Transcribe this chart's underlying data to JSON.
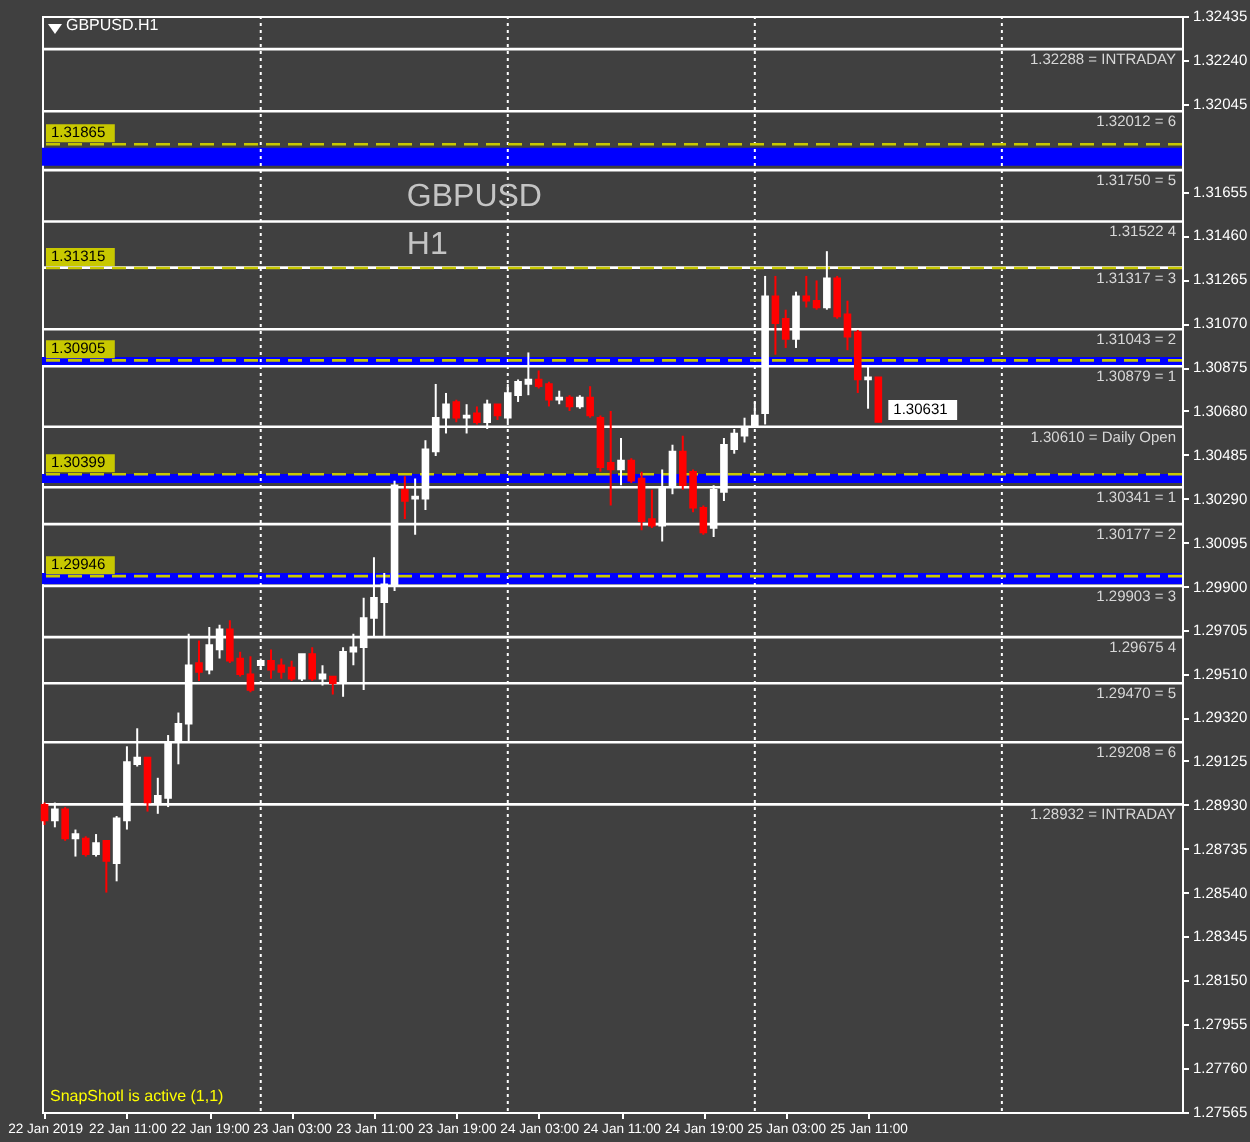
{
  "chart_data": {
    "type": "candlestick",
    "title": "GBPUSD.H1",
    "annotations": [
      "GBPUSD",
      "H1",
      "SnapShotl is active (1,1)",
      {
        "text": "1.30631",
        "x": "2019-01-25T12:00",
        "y": 1.30631
      }
    ],
    "x": [
      "2019-01-22T03:00",
      "2019-01-22T04:00",
      "2019-01-22T05:00",
      "2019-01-22T06:00",
      "2019-01-22T07:00",
      "2019-01-22T08:00",
      "2019-01-22T09:00",
      "2019-01-22T10:00",
      "2019-01-22T11:00",
      "2019-01-22T12:00",
      "2019-01-22T13:00",
      "2019-01-22T14:00",
      "2019-01-22T15:00",
      "2019-01-22T16:00",
      "2019-01-22T17:00",
      "2019-01-22T18:00",
      "2019-01-22T19:00",
      "2019-01-22T20:00",
      "2019-01-22T21:00",
      "2019-01-22T22:00",
      "2019-01-22T23:00",
      "2019-01-23T00:00",
      "2019-01-23T01:00",
      "2019-01-23T02:00",
      "2019-01-23T03:00",
      "2019-01-23T04:00",
      "2019-01-23T05:00",
      "2019-01-23T06:00",
      "2019-01-23T07:00",
      "2019-01-23T08:00",
      "2019-01-23T09:00",
      "2019-01-23T10:00",
      "2019-01-23T11:00",
      "2019-01-23T12:00",
      "2019-01-23T13:00",
      "2019-01-23T14:00",
      "2019-01-23T15:00",
      "2019-01-23T16:00",
      "2019-01-23T17:00",
      "2019-01-23T18:00",
      "2019-01-23T19:00",
      "2019-01-23T20:00",
      "2019-01-23T21:00",
      "2019-01-23T22:00",
      "2019-01-23T23:00",
      "2019-01-24T00:00",
      "2019-01-24T01:00",
      "2019-01-24T02:00",
      "2019-01-24T03:00",
      "2019-01-24T04:00",
      "2019-01-24T05:00",
      "2019-01-24T06:00",
      "2019-01-24T07:00",
      "2019-01-24T08:00",
      "2019-01-24T09:00",
      "2019-01-24T10:00",
      "2019-01-24T11:00",
      "2019-01-24T12:00",
      "2019-01-24T13:00",
      "2019-01-24T14:00",
      "2019-01-24T15:00",
      "2019-01-24T16:00",
      "2019-01-24T17:00",
      "2019-01-24T18:00",
      "2019-01-24T19:00",
      "2019-01-24T20:00",
      "2019-01-24T21:00",
      "2019-01-24T22:00",
      "2019-01-24T23:00",
      "2019-01-25T00:00",
      "2019-01-25T01:00",
      "2019-01-25T02:00",
      "2019-01-25T03:00",
      "2019-01-25T04:00",
      "2019-01-25T05:00",
      "2019-01-25T06:00",
      "2019-01-25T07:00",
      "2019-01-25T08:00",
      "2019-01-25T09:00",
      "2019-01-25T10:00",
      "2019-01-25T11:00",
      "2019-01-25T12:00"
    ],
    "ohlc": [
      [
        1.2893,
        1.2894,
        1.2884,
        1.2886
      ],
      [
        1.2886,
        1.2894,
        1.2883,
        1.2891
      ],
      [
        1.2891,
        1.2892,
        1.2877,
        1.2878
      ],
      [
        1.2878,
        1.2882,
        1.287,
        1.288
      ],
      [
        1.2878,
        1.2879,
        1.287,
        1.2871
      ],
      [
        1.2871,
        1.288,
        1.287,
        1.2876
      ],
      [
        1.2877,
        1.2877,
        1.2854,
        1.2868
      ],
      [
        1.2867,
        1.2888,
        1.2859,
        1.2887
      ],
      [
        1.2886,
        1.2919,
        1.2882,
        1.2912
      ],
      [
        1.2911,
        1.2927,
        1.291,
        1.2914
      ],
      [
        1.2914,
        1.2914,
        1.289,
        1.2894
      ],
      [
        1.2894,
        1.2905,
        1.2889,
        1.2897
      ],
      [
        1.2896,
        1.2924,
        1.2892,
        1.2921
      ],
      [
        1.2921,
        1.2934,
        1.2911,
        1.2929
      ],
      [
        1.2929,
        1.2969,
        1.2921,
        1.2955
      ],
      [
        1.2956,
        1.2966,
        1.2948,
        1.2952
      ],
      [
        1.2953,
        1.2972,
        1.2951,
        1.2964
      ],
      [
        1.2962,
        1.2973,
        1.2958,
        1.2971
      ],
      [
        1.2971,
        1.2975,
        1.2956,
        1.2957
      ],
      [
        1.2958,
        1.2961,
        1.295,
        1.2951
      ],
      [
        1.2951,
        1.2959,
        1.2943,
        1.2944
      ],
      [
        1.2955,
        1.2958,
        1.2953,
        1.2957
      ],
      [
        1.2957,
        1.2962,
        1.2949,
        1.2953
      ],
      [
        1.2955,
        1.2958,
        1.2949,
        1.2952
      ],
      [
        1.2954,
        1.2957,
        1.2948,
        1.2949
      ],
      [
        1.2949,
        1.296,
        1.2948,
        1.296
      ],
      [
        1.296,
        1.2963,
        1.2948,
        1.2949
      ],
      [
        1.2949,
        1.2955,
        1.2946,
        1.2951
      ],
      [
        1.295,
        1.295,
        1.2942,
        1.2947
      ],
      [
        1.2947,
        1.2963,
        1.2941,
        1.2961
      ],
      [
        1.2961,
        1.2969,
        1.2955,
        1.2963
      ],
      [
        1.2963,
        1.2985,
        1.2944,
        1.2976
      ],
      [
        1.2976,
        1.3003,
        1.2968,
        1.2985
      ],
      [
        1.2983,
        1.2996,
        1.2968,
        1.2991
      ],
      [
        1.2991,
        1.3037,
        1.2988,
        1.3035
      ],
      [
        1.3033,
        1.3039,
        1.302,
        1.3028
      ],
      [
        1.3029,
        1.3038,
        1.3013,
        1.303
      ],
      [
        1.3029,
        1.3055,
        1.3024,
        1.3051
      ],
      [
        1.305,
        1.308,
        1.3048,
        1.3065
      ],
      [
        1.3065,
        1.3076,
        1.3058,
        1.3071
      ],
      [
        1.3072,
        1.3073,
        1.3063,
        1.3065
      ],
      [
        1.3065,
        1.3071,
        1.3058,
        1.3066
      ],
      [
        1.3067,
        1.307,
        1.3062,
        1.3063
      ],
      [
        1.3063,
        1.3073,
        1.306,
        1.3071
      ],
      [
        1.3071,
        1.3071,
        1.3064,
        1.3066
      ],
      [
        1.3065,
        1.308,
        1.3063,
        1.3076
      ],
      [
        1.3075,
        1.3082,
        1.3072,
        1.3081
      ],
      [
        1.308,
        1.3094,
        1.3075,
        1.3082
      ],
      [
        1.3082,
        1.3086,
        1.3078,
        1.3079
      ],
      [
        1.308,
        1.3081,
        1.307,
        1.3073
      ],
      [
        1.3073,
        1.3077,
        1.3071,
        1.3074
      ],
      [
        1.3074,
        1.3075,
        1.3068,
        1.307
      ],
      [
        1.307,
        1.3075,
        1.3069,
        1.3074
      ],
      [
        1.3074,
        1.3079,
        1.3065,
        1.3066
      ],
      [
        1.3065,
        1.3066,
        1.3041,
        1.3043
      ],
      [
        1.3045,
        1.3068,
        1.3026,
        1.3042
      ],
      [
        1.3042,
        1.3056,
        1.3035,
        1.3046
      ],
      [
        1.3046,
        1.3047,
        1.3036,
        1.3037
      ],
      [
        1.3038,
        1.3041,
        1.3015,
        1.3019
      ],
      [
        1.302,
        1.3033,
        1.3016,
        1.3017
      ],
      [
        1.3017,
        1.3042,
        1.301,
        1.3034
      ],
      [
        1.3035,
        1.3053,
        1.3031,
        1.305
      ],
      [
        1.305,
        1.3057,
        1.3033,
        1.3035
      ],
      [
        1.3041,
        1.3042,
        1.3023,
        1.3025
      ],
      [
        1.3025,
        1.3026,
        1.3013,
        1.3014
      ],
      [
        1.3016,
        1.3035,
        1.3012,
        1.3033
      ],
      [
        1.3032,
        1.3056,
        1.3028,
        1.3053
      ],
      [
        1.3051,
        1.306,
        1.3049,
        1.3058
      ],
      [
        1.3057,
        1.3065,
        1.3054,
        1.3061
      ],
      [
        1.3061,
        1.3072,
        1.3061,
        1.3066
      ],
      [
        1.3067,
        1.3128,
        1.3062,
        1.3119
      ],
      [
        1.3119,
        1.3128,
        1.3093,
        1.3107
      ],
      [
        1.3109,
        1.3113,
        1.3096,
        1.31
      ],
      [
        1.31,
        1.3121,
        1.3096,
        1.3119
      ],
      [
        1.3119,
        1.3128,
        1.3114,
        1.3117
      ],
      [
        1.3117,
        1.3126,
        1.3113,
        1.3114
      ],
      [
        1.3114,
        1.3139,
        1.3113,
        1.3127
      ],
      [
        1.3127,
        1.3128,
        1.3109,
        1.311
      ],
      [
        1.3111,
        1.3117,
        1.3095,
        1.3101
      ],
      [
        1.3103,
        1.3104,
        1.3076,
        1.3082
      ],
      [
        1.3082,
        1.3088,
        1.3069,
        1.3083
      ],
      [
        1.3083,
        1.3083,
        1.3063,
        1.30631
      ]
    ],
    "colors": [
      "#ff0000",
      "#ffffff",
      "#ff0000",
      "#ffffff",
      "#ff0000",
      "#ffffff",
      "#ff0000",
      "#ffffff",
      "#ffffff",
      "#ffffff",
      "#ff0000",
      "#ffffff",
      "#ffffff",
      "#ffffff",
      "#ffffff",
      "#ff0000",
      "#ffffff",
      "#ffffff",
      "#ff0000",
      "#ff0000",
      "#ff0000",
      "#ffffff",
      "#ff0000",
      "#ff0000",
      "#ff0000",
      "#ffffff",
      "#ff0000",
      "#ffffff",
      "#ff0000",
      "#ffffff",
      "#ffffff",
      "#ffffff",
      "#ffffff",
      "#ffffff",
      "#ffffff",
      "#ff0000",
      "#ffffff",
      "#ffffff",
      "#ffffff",
      "#ffffff",
      "#ff0000",
      "#ffffff",
      "#ff0000",
      "#ffffff",
      "#ff0000",
      "#ffffff",
      "#ffffff",
      "#ffffff",
      "#ff0000",
      "#ff0000",
      "#ffffff",
      "#ff0000",
      "#ffffff",
      "#ff0000",
      "#ff0000",
      "#ff0000",
      "#ffffff",
      "#ff0000",
      "#ff0000",
      "#ff0000",
      "#ffffff",
      "#ffffff",
      "#ff0000",
      "#ff0000",
      "#ff0000",
      "#ffffff",
      "#ffffff",
      "#ffffff",
      "#ffffff",
      "#ffffff",
      "#ffffff",
      "#ff0000",
      "#ff0000",
      "#ffffff",
      "#ff0000",
      "#ff0000",
      "#ffffff",
      "#ff0000",
      "#ff0000",
      "#ff0000",
      "#ffffff",
      "#ff0000"
    ],
    "xlim": [
      "2019-01-22T02:45",
      "2019-01-26T17:30"
    ],
    "xticks": [
      {
        "value": "2019-01-22T03:00",
        "label": "22 Jan 2019"
      },
      {
        "value": "2019-01-22T11:00",
        "label": "22 Jan 11:00"
      },
      {
        "value": "2019-01-22T19:00",
        "label": "22 Jan 19:00"
      },
      {
        "value": "2019-01-23T03:00",
        "label": "23 Jan 03:00"
      },
      {
        "value": "2019-01-23T11:00",
        "label": "23 Jan 11:00"
      },
      {
        "value": "2019-01-23T19:00",
        "label": "23 Jan 19:00"
      },
      {
        "value": "2019-01-24T03:00",
        "label": "24 Jan 03:00"
      },
      {
        "value": "2019-01-24T11:00",
        "label": "24 Jan 11:00"
      },
      {
        "value": "2019-01-24T19:00",
        "label": "24 Jan 19:00"
      },
      {
        "value": "2019-01-25T03:00",
        "label": "25 Jan 03:00"
      },
      {
        "value": "2019-01-25T11:00",
        "label": "25 Jan 11:00"
      }
    ],
    "ylim": [
      1.27565,
      1.32435
    ],
    "yticks": [
      1.32435,
      {
        "value": 1.3224,
        "label": "1.32240"
      },
      1.32045,
      1.31655,
      {
        "value": 1.3146,
        "label": "1.31460"
      },
      1.31265,
      {
        "value": 1.3107,
        "label": "1.31070"
      },
      1.30875,
      {
        "value": 1.3068,
        "label": "1.30680"
      },
      1.30485,
      {
        "value": 1.3029,
        "label": "1.30290"
      },
      1.30095,
      {
        "value": 1.299,
        "label": "1.29900"
      },
      1.29705,
      {
        "value": 1.2951,
        "label": "1.29510"
      },
      {
        "value": 1.2932,
        "label": "1.29320"
      },
      1.29125,
      {
        "value": 1.2893,
        "label": "1.28930"
      },
      1.28735,
      {
        "value": 1.2854,
        "label": "1.28540"
      },
      1.28345,
      {
        "value": 1.2815,
        "label": "1.28150"
      },
      1.27955,
      {
        "value": 1.2776,
        "label": "1.27760"
      },
      1.27565
    ],
    "ref_lines": [
      {
        "axis": "x",
        "value": "2019-01-23T00:00",
        "color": "#ffffff",
        "line_style": "dotted"
      },
      {
        "axis": "x",
        "value": "2019-01-24T00:00",
        "color": "#ffffff",
        "line_style": "dotted"
      },
      {
        "axis": "x",
        "value": "2019-01-25T00:00",
        "color": "#ffffff",
        "line_style": "dotted"
      },
      {
        "axis": "x",
        "value": "2019-01-26T00:00",
        "color": "#ffffff",
        "line_style": "dotted"
      },
      {
        "axis": "y",
        "value": 1.32288,
        "label": "1.32288 = INTRADAY",
        "color": "#ffffff",
        "line_style": "solid"
      },
      {
        "axis": "y",
        "value": 1.32012,
        "label": "1.32012 = 6",
        "color": "#ffffff",
        "line_style": "solid"
      },
      {
        "axis": "y",
        "value": 1.3175,
        "label": "1.31750 = 5",
        "color": "#ffffff",
        "line_style": "solid"
      },
      {
        "axis": "y",
        "value": 1.31522,
        "label": "1.31522 4",
        "color": "#ffffff",
        "line_style": "solid"
      },
      {
        "axis": "y",
        "value": 1.31317,
        "label": "1.31317 = 3",
        "color": "#ffffff",
        "line_style": "solid"
      },
      {
        "axis": "y",
        "value": 1.31043,
        "label": "1.31043 = 2",
        "color": "#ffffff",
        "line_style": "solid"
      },
      {
        "axis": "y",
        "value": 1.30879,
        "label": "1.30879 = 1",
        "color": "#ffffff",
        "line_style": "solid"
      },
      {
        "axis": "y",
        "value": 1.3061,
        "label": "1.30610 = Daily Open",
        "color": "#ffffff",
        "line_style": "solid"
      },
      {
        "axis": "y",
        "value": 1.30341,
        "label": "1.30341 = 1",
        "color": "#ffffff",
        "line_style": "solid"
      },
      {
        "axis": "y",
        "value": 1.30177,
        "label": "1.30177 = 2",
        "color": "#ffffff",
        "line_style": "solid"
      },
      {
        "axis": "y",
        "value": 1.29903,
        "label": "1.29903 = 3",
        "color": "#ffffff",
        "line_style": "solid"
      },
      {
        "axis": "y",
        "value": 1.29675,
        "label": "1.29675 4",
        "color": "#ffffff",
        "line_style": "solid"
      },
      {
        "axis": "y",
        "value": 1.2947,
        "label": "1.29470 = 5",
        "color": "#ffffff",
        "line_style": "solid"
      },
      {
        "axis": "y",
        "value": 1.29208,
        "label": "1.29208 = 6",
        "color": "#ffffff",
        "line_style": "solid"
      },
      {
        "axis": "y",
        "value": 1.28932,
        "label": "1.28932 = INTRADAY",
        "color": "#ffffff",
        "line_style": "solid"
      },
      {
        "axis": "y",
        "value": 1.31865,
        "label": "1.31865",
        "color": "#c8c800",
        "line_style": "dashed"
      },
      {
        "axis": "y",
        "value": 1.31315,
        "label": "1.31315",
        "color": "#c8c800",
        "line_style": "dashed"
      },
      {
        "axis": "y",
        "value": 1.30905,
        "label": "1.30905",
        "color": "#c8c800",
        "line_style": "dashed"
      },
      {
        "axis": "y",
        "value": 1.30399,
        "label": "1.30399",
        "color": "#c8c800",
        "line_style": "dashed"
      },
      {
        "axis": "y",
        "value": 1.29946,
        "label": "1.29946",
        "color": "#c8c800",
        "line_style": "dashed"
      }
    ],
    "bands": [
      {
        "axis": "y",
        "from": 1.3177,
        "to": 1.3185,
        "color": "#0000ff"
      },
      {
        "axis": "y",
        "from": 1.3088,
        "to": 1.3092,
        "color": "#0000ff"
      },
      {
        "axis": "y",
        "from": 1.3036,
        "to": 1.304,
        "color": "#0000ff"
      },
      {
        "axis": "y",
        "from": 1.2991,
        "to": 1.2996,
        "color": "#0000ff"
      }
    ],
    "grid": false
  }
}
